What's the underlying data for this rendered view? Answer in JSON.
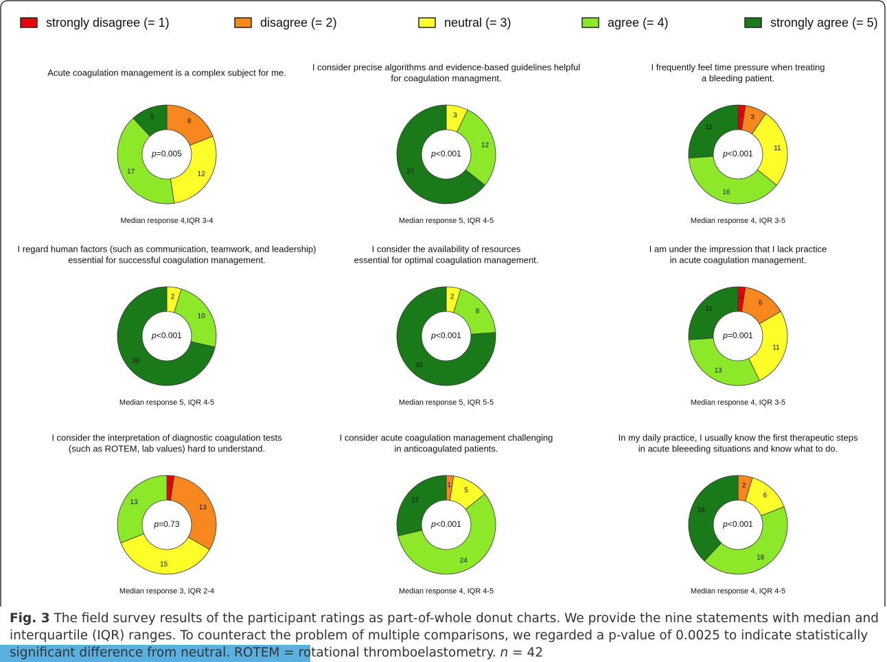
{
  "legend": [
    {
      "name": "strongly disagree (= 1)",
      "color": "#e8000b"
    },
    {
      "name": "disagree (= 2)",
      "color": "#f7871f"
    },
    {
      "name": "neutral (= 3)",
      "color": "#fdfd2a"
    },
    {
      "name": "agree (= 4)",
      "color": "#8ee82a"
    },
    {
      "name": "strongly agree (= 5)",
      "color": "#1a7a1a"
    }
  ],
  "chart_data": [
    {
      "type": "pie",
      "title": [
        "Acute coagulation management is a complex subject for me."
      ],
      "values": [
        0,
        8,
        12,
        17,
        5
      ],
      "annotation": {
        "symbol": "p",
        "text": "=0.005"
      },
      "subtitle": "Median response 4,IQR 3-4"
    },
    {
      "type": "pie",
      "title": [
        "I consider precise algorithms and evidence-based guidelines helpful",
        "for coagulation managment."
      ],
      "values": [
        0,
        0,
        3,
        12,
        27
      ],
      "annotation": {
        "symbol": "p",
        "text": "<0.001"
      },
      "subtitle": "Median response 5, IQR 4-5"
    },
    {
      "type": "pie",
      "title": [
        "I frequently feel time pressure when treating",
        "a bleeding patient."
      ],
      "values": [
        1,
        3,
        11,
        16,
        11
      ],
      "annotation": {
        "symbol": "p",
        "text": "<0.001"
      },
      "subtitle": "Median response 4, IQR 3-5"
    },
    {
      "type": "pie",
      "title": [
        "I regard human factors (such as communication, teamwork, and leadership)",
        "essential for successful coagulation management."
      ],
      "values": [
        0,
        0,
        2,
        10,
        30
      ],
      "annotation": {
        "symbol": "p",
        "text": "<0.001"
      },
      "subtitle": "Median response 5, IQR 4-5"
    },
    {
      "type": "pie",
      "title": [
        "I consider the availability of resources",
        "essential for optimal coagulation management."
      ],
      "values": [
        0,
        0,
        2,
        8,
        32
      ],
      "annotation": {
        "symbol": "p",
        "text": "<0.001"
      },
      "subtitle": "Median response 5, IQR 5-5"
    },
    {
      "type": "pie",
      "title": [
        "I am under the impression that I lack practice",
        "in acute coagulation management."
      ],
      "values": [
        1,
        6,
        11,
        13,
        11
      ],
      "annotation": {
        "symbol": "p",
        "text": "=0.001"
      },
      "subtitle": "Median response 4, IQR 3-5"
    },
    {
      "type": "pie",
      "title": [
        "I consider the interpretation of diagnostic coagulation tests",
        "(such as ROTEM, lab values) hard to understand."
      ],
      "values": [
        1,
        13,
        15,
        13,
        0
      ],
      "annotation": {
        "symbol": "p",
        "text": "=0.73"
      },
      "subtitle": "Median response 3, IQR 2-4"
    },
    {
      "type": "pie",
      "title": [
        "I consider acute coagulation management challenging",
        "in anticoagulated patients."
      ],
      "values": [
        0,
        1,
        5,
        24,
        12
      ],
      "annotation": {
        "symbol": "p",
        "text": "<0.001"
      },
      "subtitle": "Median response 4, IQR 4-5"
    },
    {
      "type": "pie",
      "title": [
        "In my daily practice, I usually know the first therapeutic steps",
        "in acute bleeeding situations and know what to do."
      ],
      "values": [
        0,
        2,
        6,
        18,
        16
      ],
      "annotation": {
        "symbol": "p",
        "text": "<0.001"
      },
      "subtitle": "Median response 4, IQR 4-5"
    }
  ],
  "caption": {
    "label": "Fig. 3",
    "text": "The field survey results of the participant ratings as part-of-whole donut charts. We provide the nine statements with median and interquartile (IQR) ranges. To counteract the problem of multiple comparisons, we regarded a p-value of 0.0025 to indicate statistically significant difference from neutral. ROTEM = rotational thromboelastometry.",
    "variable": "n",
    "value": "= 42"
  }
}
